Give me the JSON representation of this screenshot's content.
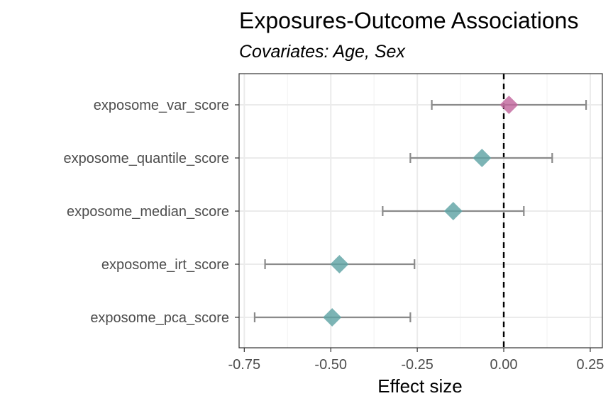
{
  "chart_data": {
    "type": "forest",
    "title": "Exposures-Outcome Associations",
    "subtitle": "Covariates: Age, Sex",
    "xlabel": "Effect size",
    "ylabel": "",
    "xlim": [
      -0.765,
      0.285
    ],
    "x_ticks": [
      -0.75,
      -0.5,
      -0.25,
      0.0,
      0.25
    ],
    "x_tick_labels": [
      "-0.75",
      "-0.50",
      "-0.25",
      "0.00",
      "0.25"
    ],
    "reference_line": 0.0,
    "grid": true,
    "categories": [
      "exposome_var_score",
      "exposome_quantile_score",
      "exposome_median_score",
      "exposome_irt_score",
      "exposome_pca_score"
    ],
    "estimates": [
      0.015,
      -0.063,
      -0.146,
      -0.475,
      -0.496
    ],
    "ci_low": [
      -0.208,
      -0.27,
      -0.35,
      -0.69,
      -0.72
    ],
    "ci_high": [
      0.238,
      0.14,
      0.058,
      -0.258,
      -0.27
    ],
    "point_colors": [
      "#c2679e",
      "#5fa3a5",
      "#5fa3a5",
      "#5fa3a5",
      "#5fa3a5"
    ],
    "errorbar_color": "#8a8a8a",
    "reference_line_color": "#000000"
  }
}
